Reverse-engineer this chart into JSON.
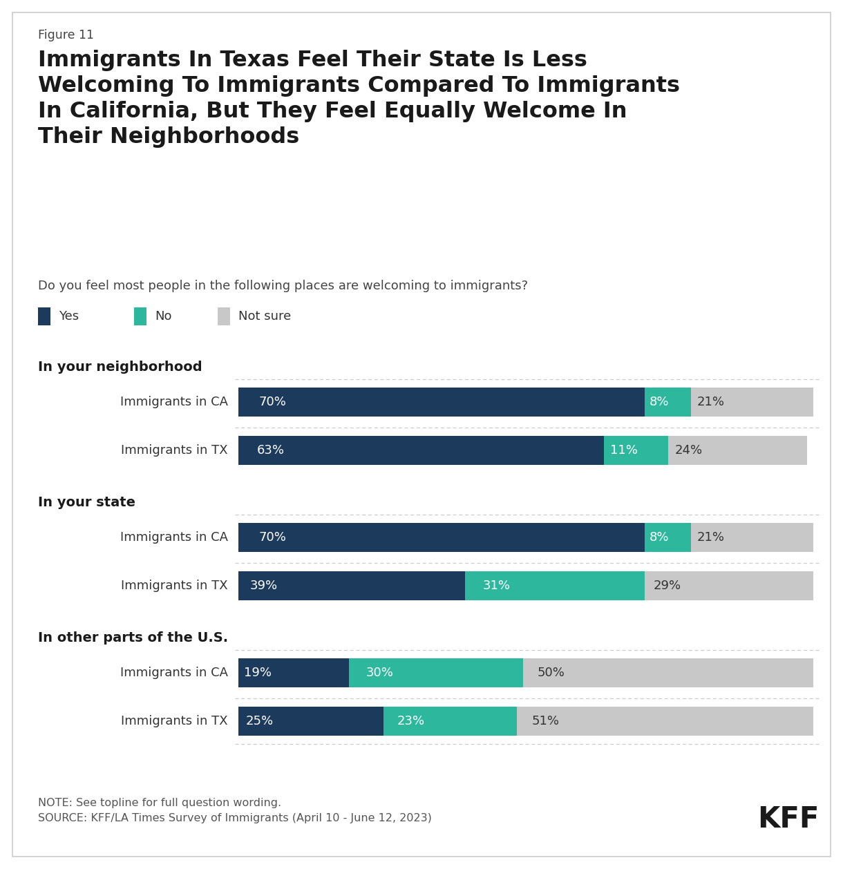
{
  "figure_label": "Figure 11",
  "title": "Immigrants In Texas Feel Their State Is Less\nWelcoming To Immigrants Compared To Immigrants\nIn California, But They Feel Equally Welcome In\nTheir Neighborhoods",
  "subtitle": "Do you feel most people in the following places are welcoming to immigrants?",
  "legend_labels": [
    "Yes",
    "No",
    "Not sure"
  ],
  "colors": {
    "yes": "#1b3a5c",
    "no": "#2db89e",
    "not_sure": "#c8c8c8"
  },
  "sections": [
    {
      "header": "In your neighborhood",
      "rows": [
        {
          "label": "Immigrants in CA",
          "yes": 70,
          "no": 8,
          "not_sure": 21
        },
        {
          "label": "Immigrants in TX",
          "yes": 63,
          "no": 11,
          "not_sure": 24
        }
      ]
    },
    {
      "header": "In your state",
      "rows": [
        {
          "label": "Immigrants in CA",
          "yes": 70,
          "no": 8,
          "not_sure": 21
        },
        {
          "label": "Immigrants in TX",
          "yes": 39,
          "no": 31,
          "not_sure": 29
        }
      ]
    },
    {
      "header": "In other parts of the U.S.",
      "rows": [
        {
          "label": "Immigrants in CA",
          "yes": 19,
          "no": 30,
          "not_sure": 50
        },
        {
          "label": "Immigrants in TX",
          "yes": 25,
          "no": 23,
          "not_sure": 51
        }
      ]
    }
  ],
  "note": "NOTE: See topline for full question wording.\nSOURCE: KFF/LA Times Survey of Immigrants (April 10 - June 12, 2023)",
  "kff_label": "KFF",
  "background_color": "#ffffff",
  "fig_width": 12.2,
  "fig_height": 12.58,
  "dpi": 100
}
